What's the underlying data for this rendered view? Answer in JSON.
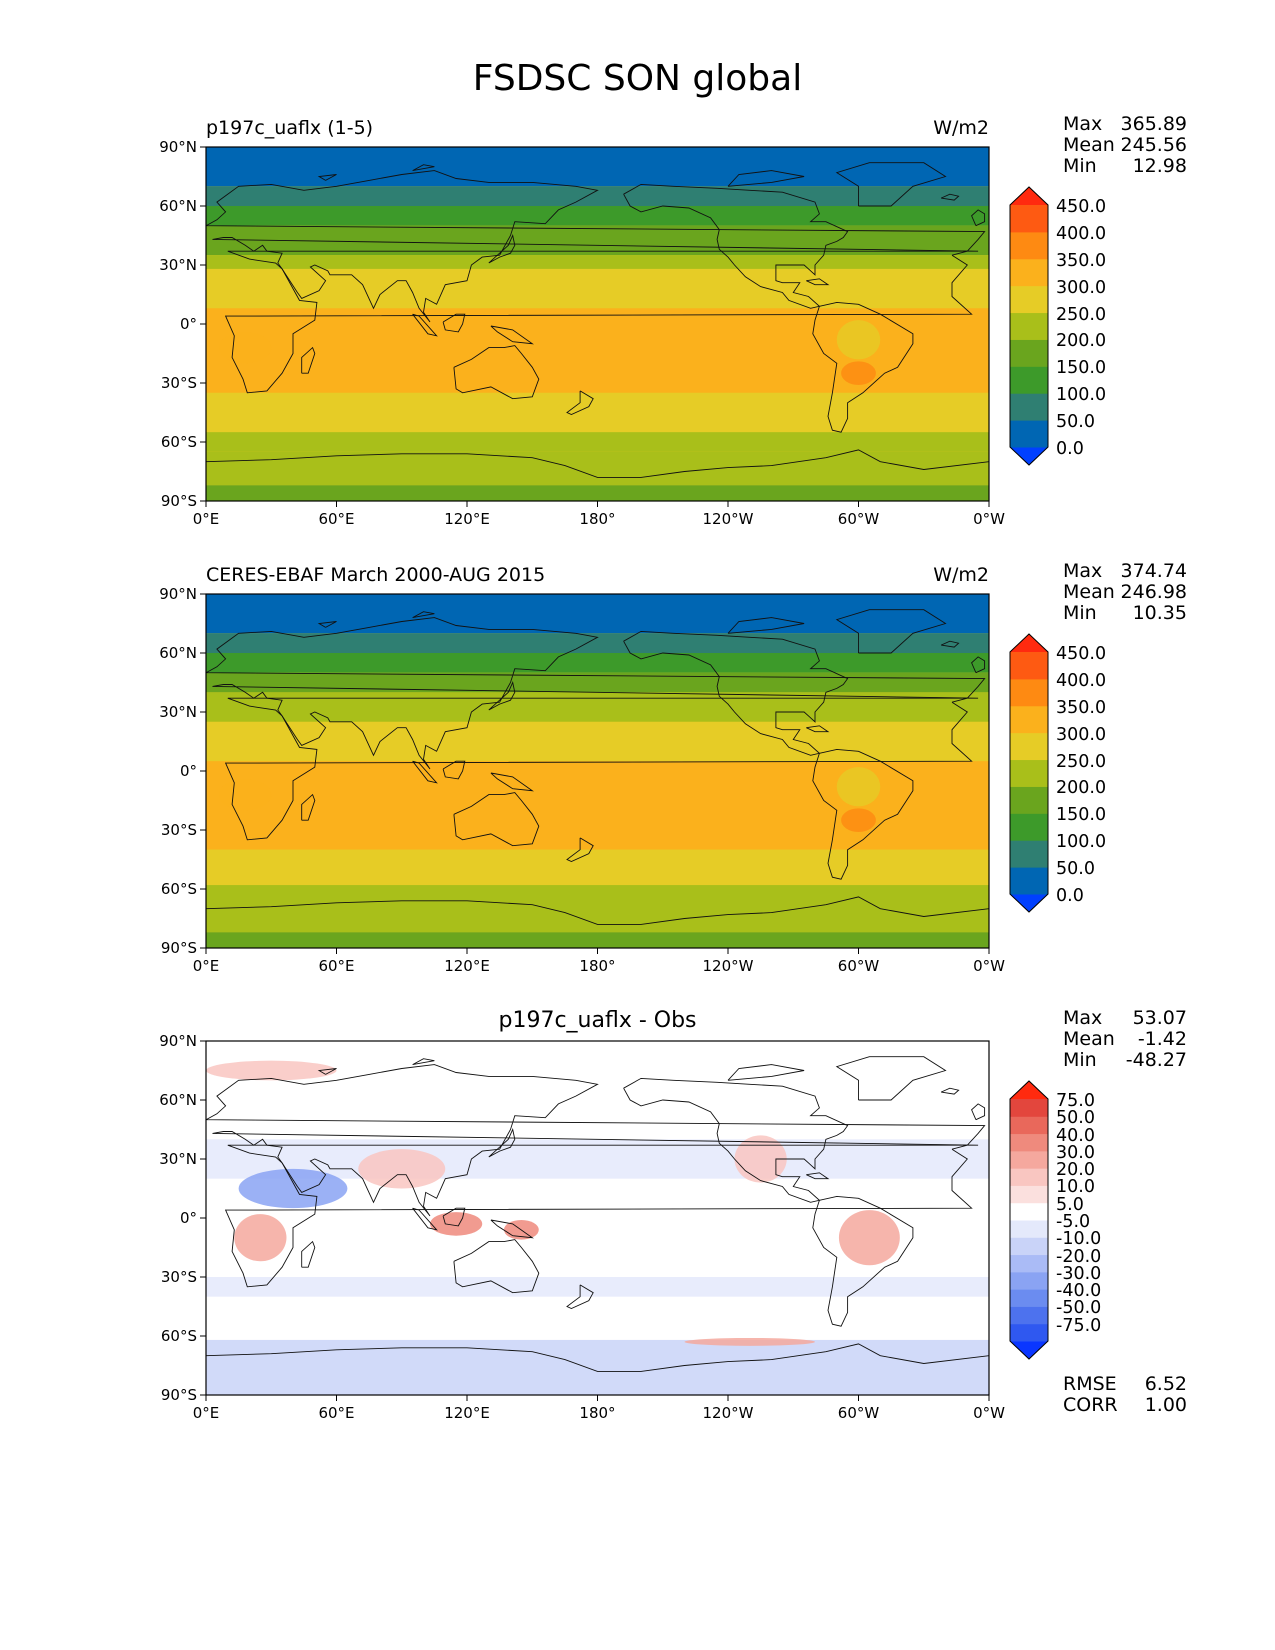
{
  "figure_title": "FSDSC SON global",
  "colors": {
    "mean_levels": [
      "#0040ff",
      "#0066b3",
      "#2f7f72",
      "#3d9a2a",
      "#6aa51e",
      "#a9bf1a",
      "#e6cc26",
      "#fbb11c",
      "#fe8a12",
      "#fe5a12",
      "#ff2a0f"
    ],
    "diff_levels": [
      "#0a36ff",
      "#2f58f0",
      "#4d72ee",
      "#6b8cf0",
      "#8aa3f3",
      "#aabbf6",
      "#c9d3f8",
      "#e4e9fb",
      "#ffffff",
      "#fbe0de",
      "#f9c6c1",
      "#f5a89e",
      "#ef8a7d",
      "#e9685b",
      "#e3463d",
      "#ff2a0f"
    ]
  },
  "panels": [
    {
      "id": "model",
      "title_left": "p197c_uaflx (1-5)",
      "title_center": "",
      "units": "W/m2",
      "stats": [
        {
          "label": "Max",
          "value": "365.89"
        },
        {
          "label": "Mean",
          "value": "245.56"
        },
        {
          "label": "Min",
          "value": "12.98"
        }
      ],
      "colorbar_labels": [
        "450.0",
        "400.0",
        "350.0",
        "300.0",
        "250.0",
        "200.0",
        "150.0",
        "100.0",
        "50.0",
        "0.0"
      ],
      "extra_stats": []
    },
    {
      "id": "obs",
      "title_left": "CERES-EBAF March 2000-AUG 2015",
      "title_center": "",
      "units": "W/m2",
      "stats": [
        {
          "label": "Max",
          "value": "374.74"
        },
        {
          "label": "Mean",
          "value": "246.98"
        },
        {
          "label": "Min",
          "value": "10.35"
        }
      ],
      "colorbar_labels": [
        "450.0",
        "400.0",
        "350.0",
        "300.0",
        "250.0",
        "200.0",
        "150.0",
        "100.0",
        "50.0",
        "0.0"
      ],
      "extra_stats": []
    },
    {
      "id": "diff",
      "title_left": "",
      "title_center": "p197c_uaflx - Obs",
      "units": "",
      "stats": [
        {
          "label": "Max",
          "value": "53.07"
        },
        {
          "label": "Mean",
          "value": "-1.42"
        },
        {
          "label": "Min",
          "value": "-48.27"
        }
      ],
      "colorbar_labels": [
        "75.0",
        "50.0",
        "40.0",
        "30.0",
        "20.0",
        "10.0",
        "5.0",
        "-5.0",
        "-10.0",
        "-20.0",
        "-30.0",
        "-40.0",
        "-50.0",
        "-75.0"
      ],
      "extra_stats": [
        {
          "label": "RMSE",
          "value": "6.52"
        },
        {
          "label": "CORR",
          "value": "1.00"
        }
      ]
    }
  ],
  "axes": {
    "lat_ticks": [
      "90°N",
      "60°N",
      "30°N",
      "0°",
      "30°S",
      "60°S",
      "90°S"
    ],
    "lon_ticks": [
      "0°E",
      "60°E",
      "120°E",
      "180°",
      "120°W",
      "60°W",
      "0°W"
    ]
  },
  "chart_data": {
    "type": "heatmap",
    "title": "FSDSC SON global",
    "projection": "cylindrical equidistant, 0°E to 360°E",
    "xlim": [
      0,
      360
    ],
    "ylim": [
      -90,
      90
    ],
    "mean_contour_levels": [
      0,
      50,
      100,
      150,
      200,
      250,
      300,
      350,
      400,
      450
    ],
    "diff_contour_levels": [
      -75,
      -50,
      -40,
      -30,
      -20,
      -10,
      -5,
      5,
      10,
      20,
      30,
      40,
      50,
      75
    ],
    "zonal_bands_model": [
      {
        "lat": [
          70,
          90
        ],
        "level": 1
      },
      {
        "lat": [
          60,
          70
        ],
        "level": 2
      },
      {
        "lat": [
          50,
          60
        ],
        "level": 3
      },
      {
        "lat": [
          35,
          50
        ],
        "level": 4
      },
      {
        "lat": [
          28,
          35
        ],
        "level": 5
      },
      {
        "lat": [
          8,
          28
        ],
        "level": 6
      },
      {
        "lat": [
          -35,
          8
        ],
        "level": 7
      },
      {
        "lat": [
          -55,
          -35
        ],
        "level": 6
      },
      {
        "lat": [
          -65,
          -55
        ],
        "level": 5
      },
      {
        "lat": [
          -82,
          -65
        ],
        "level": 5
      },
      {
        "lat": [
          -90,
          -82
        ],
        "level": 4
      }
    ],
    "zonal_bands_obs": [
      {
        "lat": [
          70,
          90
        ],
        "level": 1
      },
      {
        "lat": [
          60,
          70
        ],
        "level": 2
      },
      {
        "lat": [
          50,
          60
        ],
        "level": 3
      },
      {
        "lat": [
          40,
          50
        ],
        "level": 4
      },
      {
        "lat": [
          25,
          40
        ],
        "level": 5
      },
      {
        "lat": [
          5,
          25
        ],
        "level": 6
      },
      {
        "lat": [
          -40,
          5
        ],
        "level": 7
      },
      {
        "lat": [
          -58,
          -40
        ],
        "level": 6
      },
      {
        "lat": [
          -82,
          -58
        ],
        "level": 5
      },
      {
        "lat": [
          -90,
          -82
        ],
        "level": 4
      }
    ],
    "diff_bands": [
      {
        "lat": [
          -90,
          -62
        ],
        "level": 6
      },
      {
        "lat": [
          -40,
          -30
        ],
        "level": 7
      },
      {
        "lat": [
          20,
          40
        ],
        "level": 7
      }
    ],
    "diff_blobs": [
      {
        "lon": 40,
        "lat": 15,
        "rx": 25,
        "ry": 10,
        "level": 4
      },
      {
        "lon": 25,
        "lat": -10,
        "rx": 12,
        "ry": 12,
        "level": 11
      },
      {
        "lon": 305,
        "lat": -10,
        "rx": 14,
        "ry": 14,
        "level": 11
      },
      {
        "lon": 115,
        "lat": -3,
        "rx": 12,
        "ry": 6,
        "level": 12
      },
      {
        "lon": 145,
        "lat": -6,
        "rx": 8,
        "ry": 5,
        "level": 12
      },
      {
        "lon": 90,
        "lat": 25,
        "rx": 20,
        "ry": 10,
        "level": 10
      },
      {
        "lon": 255,
        "lat": 30,
        "rx": 12,
        "ry": 12,
        "level": 10
      },
      {
        "lon": 30,
        "lat": 75,
        "rx": 30,
        "ry": 5,
        "level": 10
      },
      {
        "lon": 250,
        "lat": -63,
        "rx": 30,
        "ry": 2,
        "level": 11
      }
    ]
  }
}
